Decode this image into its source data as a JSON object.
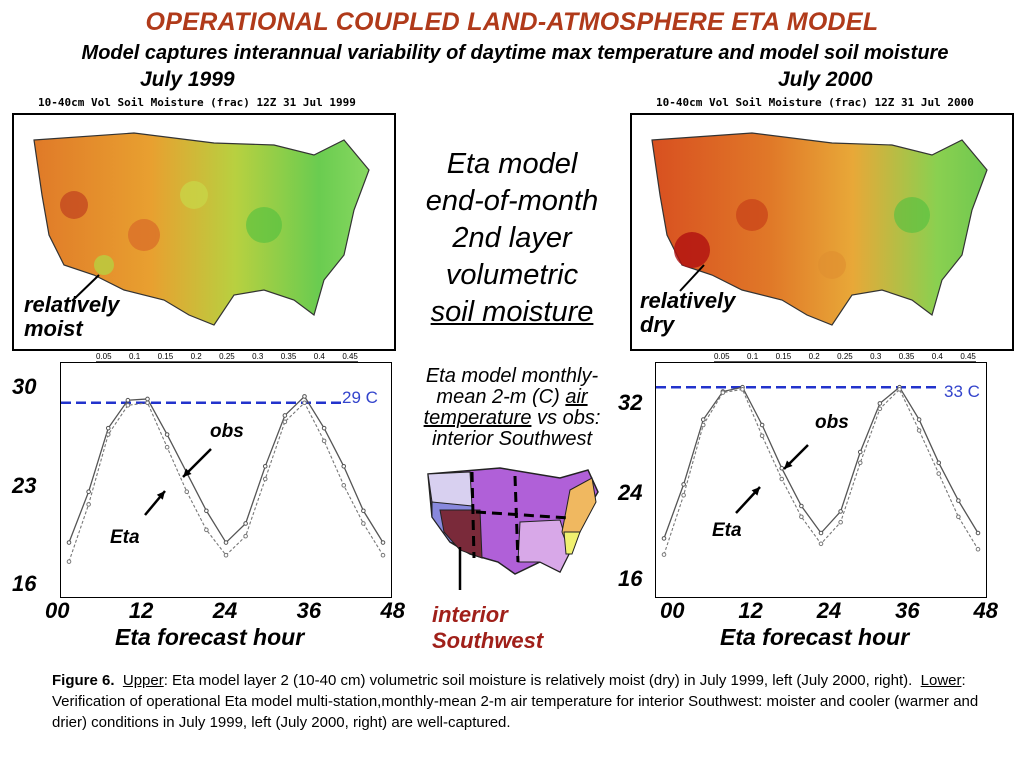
{
  "title": "OPERATIONAL COUPLED LAND-ATMOSPHERE ETA MODEL",
  "subtitle": "Model captures interannual variability of daytime max temperature and model soil moisture",
  "maps": {
    "left": {
      "label": "July 1999",
      "title": "10-40cm Vol Soil Moisture (frac) 12Z 31 Jul 1999",
      "annotation_line1": "relatively",
      "annotation_line2": "moist"
    },
    "right": {
      "label": "July 2000",
      "title": "10-40cm Vol Soil Moisture (frac) 12Z 31 Jul 2000",
      "annotation_line1": "relatively",
      "annotation_line2": "dry"
    },
    "colorbar_labels": [
      "0.05",
      "0.1",
      "0.15",
      "0.2",
      "0.25",
      "0.3",
      "0.35",
      "0.4",
      "0.45"
    ],
    "colorbar_colors": [
      "#c01010",
      "#e04020",
      "#f07030",
      "#f3a030",
      "#f5c840",
      "#e8e850",
      "#b0e060",
      "#70d060",
      "#30b040"
    ]
  },
  "center_label": {
    "line1": "Eta model",
    "line2": "end-of-month",
    "line3": "2nd layer",
    "line4": "volumetric",
    "line5": "soil moisture"
  },
  "middle_label": {
    "line1": "Eta model monthly-",
    "line2": "mean 2-m (C)",
    "line2_u": "air",
    "line3_u": "temperature",
    "line3": "vs obs:",
    "line4": "interior Southwest"
  },
  "region_label": {
    "line1": "interior",
    "line2": "Southwest"
  },
  "charts": {
    "left": {
      "yticks": [
        "30",
        "23",
        "16"
      ],
      "xticks": [
        "00",
        "12",
        "24",
        "36",
        "48"
      ],
      "xlabel": "Eta forecast hour",
      "ref_label": "29 C",
      "obs_label": "obs",
      "eta_label": "Eta"
    },
    "right": {
      "yticks": [
        "32",
        "24",
        "16"
      ],
      "xticks": [
        "00",
        "12",
        "24",
        "36",
        "48"
      ],
      "xlabel": "Eta forecast hour",
      "ref_label": "33 C",
      "obs_label": "obs",
      "eta_label": "Eta"
    }
  },
  "caption": {
    "fig": "Figure 6.",
    "upper": "Upper",
    "upper_text": ":  Eta model layer 2 (10-40 cm) volumetric soil moisture is relatively moist (dry) in July 1999, left (July 2000, right).",
    "lower": "Lower",
    "lower_text": ":  Verification of operational Eta model multi-station,monthly-mean 2-m air temperature for interior Southwest: moister and cooler (warmer and drier) conditions in July 1999, left (July 2000, right) are well-captured."
  },
  "chart_data": [
    {
      "type": "line",
      "x": [
        0,
        3,
        6,
        9,
        12,
        15,
        18,
        21,
        24,
        27,
        30,
        33,
        36,
        39,
        42,
        45,
        48
      ],
      "xlabel": "Eta forecast hour",
      "ylim": [
        16,
        30
      ],
      "reference_line": 29,
      "series": [
        {
          "name": "obs",
          "values": [
            18,
            22,
            27,
            29.2,
            29.3,
            26.5,
            23.5,
            20.5,
            18,
            19.5,
            24,
            28,
            29.5,
            27,
            24,
            20.5,
            18
          ]
        },
        {
          "name": "Eta",
          "values": [
            16.5,
            21,
            26.5,
            28.8,
            29,
            25.5,
            22,
            19,
            17,
            18.5,
            23,
            27.5,
            29,
            26,
            22.5,
            19.5,
            17
          ]
        }
      ]
    },
    {
      "type": "line",
      "x": [
        0,
        3,
        6,
        9,
        12,
        15,
        18,
        21,
        24,
        27,
        30,
        33,
        36,
        39,
        42,
        45,
        48
      ],
      "xlabel": "Eta forecast hour",
      "ylim": [
        16,
        33
      ],
      "reference_line": 33,
      "series": [
        {
          "name": "obs",
          "values": [
            19,
            24,
            30,
            32.6,
            33,
            29.5,
            25.5,
            22,
            19.5,
            21.5,
            27,
            31.5,
            33,
            30,
            26,
            22.5,
            19.5
          ]
        },
        {
          "name": "Eta",
          "values": [
            17.5,
            23,
            29.5,
            32.5,
            32.8,
            28.5,
            24.5,
            21,
            18.5,
            20.5,
            26,
            31,
            32.8,
            29,
            25,
            21,
            18
          ]
        }
      ]
    }
  ]
}
